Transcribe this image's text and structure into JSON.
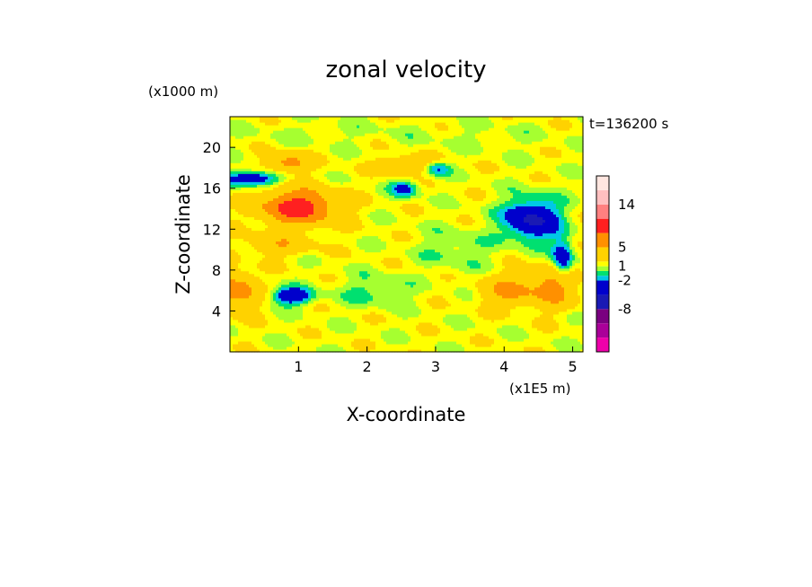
{
  "chart_data": {
    "type": "heatmap",
    "title": "zonal velocity",
    "xlabel": "X-coordinate",
    "ylabel": "Z-coordinate",
    "x_unit_label": "(x1E5 m)",
    "y_unit_label": "(x1000 m)",
    "time_label": "t=136200 s",
    "xlim": [
      0,
      5.15
    ],
    "ylim": [
      0,
      23
    ],
    "x_ticks": [
      1,
      2,
      3,
      4,
      5
    ],
    "y_ticks": [
      4,
      8,
      12,
      16,
      20
    ],
    "colorbar": {
      "levels": [
        -14,
        -11,
        -8,
        -5,
        -2,
        -1,
        0,
        1,
        2,
        5,
        8,
        11,
        14,
        17
      ],
      "colors": [
        "#ee00aa",
        "#aa0099",
        "#7a0080",
        "#1a1ab4",
        "#0000cc",
        "#00c8e6",
        "#00e070",
        "#a6ff30",
        "#ffff00",
        "#ffd200",
        "#ff9000",
        "#ff2020",
        "#ff8080",
        "#ffc0c0",
        "#ffe6e0"
      ],
      "tick_labels": [
        "14",
        "5",
        "1",
        "-2",
        "-8"
      ],
      "tick_values": [
        14,
        5,
        1,
        -2,
        -8
      ]
    },
    "features": [
      {
        "x": 1.0,
        "z": 14.2,
        "value": 8.5,
        "sx": 0.55,
        "sz": 1.7
      },
      {
        "x": 0.1,
        "z": 6.0,
        "value": 5.5,
        "sx": 0.3,
        "sz": 1.8
      },
      {
        "x": 0.85,
        "z": 18.5,
        "value": 5.0,
        "sx": 0.3,
        "sz": 0.9
      },
      {
        "x": 2.6,
        "z": 18.3,
        "value": 4.5,
        "sx": 0.4,
        "sz": 0.8
      },
      {
        "x": 0.3,
        "z": 17.0,
        "value": -6.0,
        "sx": 0.4,
        "sz": 0.7
      },
      {
        "x": 0.9,
        "z": 5.5,
        "value": -6.0,
        "sx": 0.3,
        "sz": 0.8
      },
      {
        "x": 4.4,
        "z": 13.0,
        "value": -7.0,
        "sx": 0.4,
        "sz": 2.0
      },
      {
        "x": 4.85,
        "z": 9.0,
        "value": -6.0,
        "sx": 0.15,
        "sz": 2.0
      },
      {
        "x": 3.0,
        "z": 18.0,
        "value": -4.5,
        "sx": 0.2,
        "sz": 0.7
      },
      {
        "x": 2.55,
        "z": 16.0,
        "value": -4.0,
        "sx": 0.2,
        "sz": 0.8
      },
      {
        "x": 4.1,
        "z": 6.0,
        "value": 4.5,
        "sx": 0.4,
        "sz": 1.5
      },
      {
        "x": 4.75,
        "z": 6.5,
        "value": 5.0,
        "sx": 0.3,
        "sz": 2.0
      },
      {
        "x": 2.1,
        "z": 6.0,
        "value": -1.8,
        "sx": 0.5,
        "sz": 1.5
      },
      {
        "x": 3.3,
        "z": 10.0,
        "value": -1.5,
        "sx": 0.5,
        "sz": 2.0
      },
      {
        "x": 0.7,
        "z": 10.5,
        "value": 3.0,
        "sx": 0.5,
        "sz": 1.0
      },
      {
        "x": 1.5,
        "z": 21.5,
        "value": -0.5,
        "sx": 1.5,
        "sz": 1.2
      },
      {
        "x": 3.8,
        "z": 21.0,
        "value": -0.5,
        "sx": 1.0,
        "sz": 1.3
      }
    ]
  }
}
